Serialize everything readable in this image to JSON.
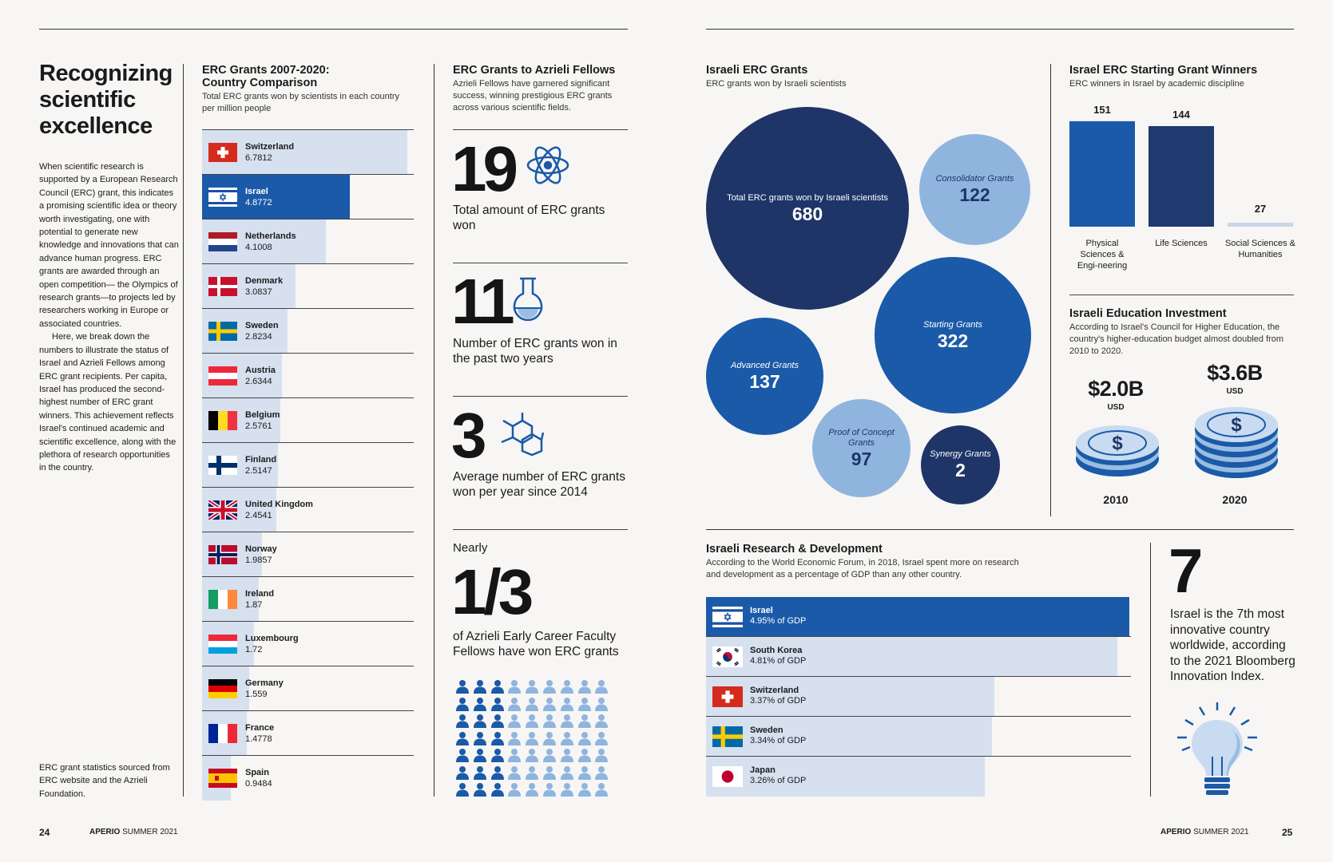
{
  "left_page": {
    "title": "Recognizing scientific excellence",
    "intro_p1": "When scientific research is supported by a European Research Council (ERC) grant, this indicates a promising scientific idea or theory worth investigating, one with potential to generate new knowledge and innovations that can advance human progress. ERC grants are awarded through an open competition— the Olympics of research grants—to projects led by researchers working in Europe or associated countries.",
    "intro_p2": "Here, we break down the numbers to illustrate the status of Israel and Azrieli Fellows among ERC grant recipients. Per capita, Israel has produced the second-highest number of ERC grant winners. This achievement reflects Israel's continued academic and scientific excellence, along with the plethora of research opportunities in the country.",
    "source_note": "ERC grant statistics sourced from ERC website and the Azrieli Foundation.",
    "page_number": "24",
    "magazine": "APERIO",
    "issue": "SUMMER 2021"
  },
  "country_comparison": {
    "title_line1": "ERC Grants 2007-2020:",
    "title_line2": "Country Comparison",
    "subtitle": "Total ERC grants won by scientists in each country per million people",
    "highlight_color": "#1a5aa8",
    "bar_color": "#d6e0ef",
    "countries": [
      {
        "name": "Switzerland",
        "value": "6.7812",
        "flag": "switzerland-flag-icon"
      },
      {
        "name": "Israel",
        "value": "4.8772",
        "flag": "israel-flag-icon"
      },
      {
        "name": "Netherlands",
        "value": "4.1008",
        "flag": "netherlands-flag-icon"
      },
      {
        "name": "Denmark",
        "value": "3.0837",
        "flag": "denmark-flag-icon"
      },
      {
        "name": "Sweden",
        "value": "2.8234",
        "flag": "sweden-flag-icon"
      },
      {
        "name": "Austria",
        "value": "2.6344",
        "flag": "austria-flag-icon"
      },
      {
        "name": "Belgium",
        "value": "2.5761",
        "flag": "belgium-flag-icon"
      },
      {
        "name": "Finland",
        "value": "2.5147",
        "flag": "finland-flag-icon"
      },
      {
        "name": "United Kingdom",
        "value": "2.4541",
        "flag": "uk-flag-icon"
      },
      {
        "name": "Norway",
        "value": "1.9857",
        "flag": "norway-flag-icon"
      },
      {
        "name": "Ireland",
        "value": "1.87",
        "flag": "ireland-flag-icon"
      },
      {
        "name": "Luxembourg",
        "value": "1.72",
        "flag": "luxembourg-flag-icon"
      },
      {
        "name": "Germany",
        "value": "1.559",
        "flag": "germany-flag-icon"
      },
      {
        "name": "France",
        "value": "1.4778",
        "flag": "france-flag-icon"
      },
      {
        "name": "Spain",
        "value": "0.9484",
        "flag": "spain-flag-icon"
      }
    ]
  },
  "azrieli_fellows": {
    "title": "ERC Grants to Azrieli Fellows",
    "subtitle": "Azrieli Fellows have garnered significant success, winning prestigious ERC grants across various scientific fields.",
    "stat1_value": "19",
    "stat1_text": "Total amount of ERC grants won",
    "stat1_icon": "atom-icon",
    "stat2_value": "11",
    "stat2_text": "Number of ERC grants won in the past two years",
    "stat2_icon": "flask-icon",
    "stat3_value": "3",
    "stat3_text": "Average number of ERC grants won per year since 2014",
    "stat3_icon": "molecule-icon",
    "stat4_prefix": "Nearly",
    "stat4_value": "1/3",
    "stat4_text": "of Azrieli Early Career Faculty Fellows have won ERC grants",
    "people_fraction": 0.333,
    "people_icon": "person-icon"
  },
  "israeli_erc_grants": {
    "title": "Israeli ERC Grants",
    "subtitle": "ERC grants won by Israeli scientists",
    "bubbles": [
      {
        "label": "Total ERC grants won by Israeli scientists",
        "value": "680"
      },
      {
        "label": "Consolidator Grants",
        "value": "122"
      },
      {
        "label": "Starting Grants",
        "value": "322"
      },
      {
        "label": "Advanced Grants",
        "value": "137"
      },
      {
        "label": "Proof of Concept Grants",
        "value": "97"
      },
      {
        "label": "Synergy Grants",
        "value": "2"
      }
    ]
  },
  "starting_grant_winners": {
    "title": "Israel ERC Starting Grant Winners",
    "subtitle": "ERC winners in Israel by academic discipline",
    "chart_data": {
      "type": "bar",
      "categories": [
        "Physical Sciences & Engi-neering",
        "Life Sciences",
        "Social Sciences & Humanities"
      ],
      "values": [
        151,
        144,
        27
      ],
      "colors": [
        "#1a5aa8",
        "#1f3a6e",
        "#c9d6ea"
      ]
    }
  },
  "education_investment": {
    "title": "Israeli Education Investment",
    "subtitle": "According to Israel's Council for Higher Education, the country's higher-education budget almost doubled from 2010 to 2020.",
    "items": [
      {
        "amount": "$2.0B",
        "unit": "USD",
        "year": "2010"
      },
      {
        "amount": "$3.6B",
        "unit": "USD",
        "year": "2020"
      }
    ],
    "coin_icon": "coin-stack-icon"
  },
  "research_development": {
    "title": "Israeli Research & Development",
    "subtitle": "According to the World Economic Forum, in 2018, Israel spent more on research and development as a percentage of GDP than any other country.",
    "countries": [
      {
        "name": "Israel",
        "value": "4.95% of GDP",
        "pct": 4.95,
        "flag": "israel-flag-icon"
      },
      {
        "name": "South Korea",
        "value": "4.81% of GDP",
        "pct": 4.81,
        "flag": "south-korea-flag-icon"
      },
      {
        "name": "Switzerland",
        "value": "3.37% of GDP",
        "pct": 3.37,
        "flag": "switzerland-flag-icon"
      },
      {
        "name": "Sweden",
        "value": "3.34% of GDP",
        "pct": 3.34,
        "flag": "sweden-flag-icon"
      },
      {
        "name": "Japan",
        "value": "3.26% of GDP",
        "pct": 3.26,
        "flag": "japan-flag-icon"
      }
    ]
  },
  "innovation": {
    "value": "7",
    "text": "Israel is the 7th most innovative country worldwide, according to the 2021 Bloomberg Innovation Index.",
    "icon": "lightbulb-icon"
  },
  "right_page": {
    "page_number": "25",
    "magazine": "APERIO",
    "issue": "SUMMER 2021"
  }
}
